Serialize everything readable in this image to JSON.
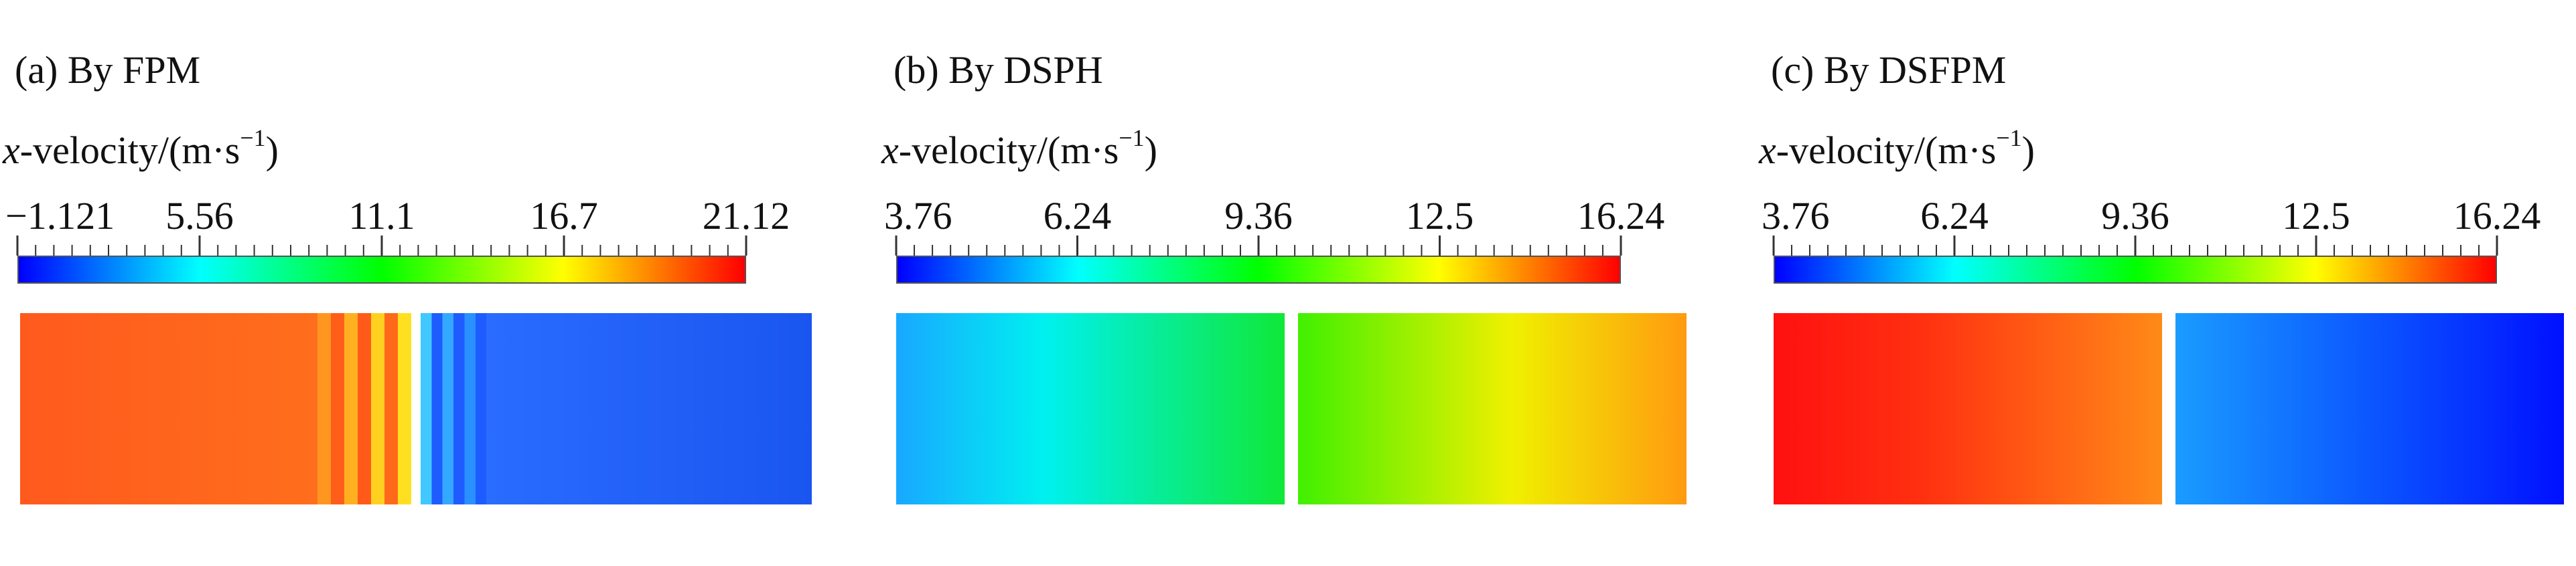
{
  "colorbar_gradient": [
    "#0000ff",
    "#0080ff",
    "#00ffff",
    "#00ff80",
    "#00ff00",
    "#80ff00",
    "#ffff00",
    "#ff8000",
    "#ff0000"
  ],
  "panels": [
    {
      "title": "(a) By FPM",
      "label_var": "x",
      "label_rest": "-velocity/(m·s",
      "label_sup": "−1",
      "label_close": ")",
      "ticks": [
        "−1.121",
        "5.56",
        "11.1",
        "16.7",
        "21.12"
      ],
      "left_field": {
        "color_start": "#ff5a1e",
        "color_end": "#ff6e1c",
        "stripes": [
          "#ff9620",
          "#ff5e1a",
          "#ffb020",
          "#ff5a1a",
          "#ffd020",
          "#ff6a1a",
          "#ffe020"
        ]
      },
      "right_field": {
        "color_start": "#2a6cff",
        "color_end": "#1a55f0",
        "stripes": [
          "#40c8ff",
          "#1e5cff",
          "#34a8ff",
          "#1e5cff",
          "#2a90ff",
          "#1e5cff"
        ]
      }
    },
    {
      "title": "(b) By DSPH",
      "label_var": "x",
      "label_rest": "-velocity/(m·s",
      "label_sup": "−1",
      "label_close": ")",
      "ticks": [
        "3.76",
        "6.24",
        "9.36",
        "12.5",
        "16.24"
      ],
      "left_field": {
        "color_start": "#18a8ff",
        "color_mid": "#00f0f0",
        "color_end": "#10e838"
      },
      "right_field": {
        "color_start": "#40f000",
        "color_mid": "#f0f000",
        "color_end": "#ff9a10"
      }
    },
    {
      "title": "(c) By DSFPM",
      "label_var": "x",
      "label_rest": "-velocity/(m·s",
      "label_sup": "−1",
      "label_close": ")",
      "ticks": [
        "3.76",
        "6.24",
        "9.36",
        "12.5",
        "16.24"
      ],
      "left_field": {
        "color_start": "#ff1010",
        "color_mid": "#ff3010",
        "color_end": "#ff8a18"
      },
      "right_field": {
        "color_start": "#1a9cff",
        "color_mid": "#0a50ff",
        "color_end": "#0010ff"
      }
    }
  ]
}
